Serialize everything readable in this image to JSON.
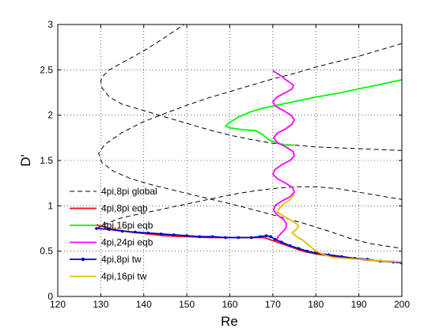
{
  "chart_data": {
    "type": "line",
    "xlabel": "Re",
    "ylabel": "D'",
    "xlim": [
      120,
      200
    ],
    "ylim": [
      0,
      3
    ],
    "xticks": [
      120,
      130,
      140,
      150,
      160,
      170,
      180,
      190,
      200
    ],
    "yticks": [
      0,
      0.5,
      1,
      1.5,
      2,
      2.5,
      3
    ],
    "grid": true,
    "legend_position": "lower-left",
    "series": [
      {
        "name": "4pi,8pi global",
        "color": "#000000",
        "style": "dashed",
        "marker": "none",
        "segments": [
          [
            [
              150,
              3.02
            ],
            [
              145,
              2.86
            ],
            [
              140,
              2.71
            ],
            [
              135,
              2.58
            ],
            [
              132,
              2.5
            ],
            [
              130.5,
              2.43
            ],
            [
              130,
              2.38
            ],
            [
              130.3,
              2.3
            ],
            [
              132,
              2.2
            ],
            [
              135,
              2.12
            ],
            [
              140,
              2.05
            ],
            [
              145,
              1.98
            ],
            [
              150,
              1.91
            ],
            [
              155,
              1.84
            ],
            [
              160,
              1.78
            ],
            [
              165,
              1.73
            ],
            [
              170,
              1.69
            ],
            [
              175,
              1.67
            ],
            [
              180,
              1.65
            ],
            [
              185,
              1.64
            ],
            [
              190,
              1.63
            ],
            [
              195,
              1.62
            ],
            [
              200,
              1.61
            ]
          ],
          [
            [
              200,
              2.79
            ],
            [
              195,
              2.72
            ],
            [
              190,
              2.65
            ],
            [
              185,
              2.59
            ],
            [
              180,
              2.53
            ],
            [
              175,
              2.46
            ],
            [
              170,
              2.4
            ],
            [
              165,
              2.33
            ],
            [
              160,
              2.26
            ],
            [
              155,
              2.19
            ],
            [
              150,
              2.11
            ],
            [
              145,
              2.02
            ],
            [
              140,
              1.93
            ],
            [
              135,
              1.81
            ],
            [
              131,
              1.68
            ],
            [
              129.5,
              1.58
            ],
            [
              130.2,
              1.48
            ],
            [
              133,
              1.38
            ],
            [
              137,
              1.3
            ],
            [
              142,
              1.23
            ],
            [
              148,
              1.16
            ],
            [
              155,
              1.08
            ],
            [
              162,
              1.0
            ],
            [
              170,
              0.9
            ],
            [
              177,
              0.81
            ],
            [
              183,
              0.72
            ],
            [
              188,
              0.64
            ],
            [
              193,
              0.58
            ],
            [
              200,
              0.53
            ]
          ],
          [
            [
              129,
              0.75
            ],
            [
              132,
              0.82
            ],
            [
              135,
              0.87
            ],
            [
              140,
              0.92
            ],
            [
              145,
              0.97
            ],
            [
              150,
              1.02
            ],
            [
              155,
              1.07
            ],
            [
              160,
              1.12
            ],
            [
              165,
              1.16
            ],
            [
              170,
              1.19
            ],
            [
              175,
              1.21
            ],
            [
              180,
              1.21
            ],
            [
              185,
              1.19
            ],
            [
              190,
              1.15
            ],
            [
              195,
              1.11
            ],
            [
              200,
              1.07
            ]
          ]
        ]
      },
      {
        "name": "4pi,8pi eqb",
        "color": "#ff0000",
        "style": "solid",
        "marker": "none",
        "segments": [
          [
            [
              129,
              0.79
            ],
            [
              133,
              0.74
            ],
            [
              137,
              0.71
            ],
            [
              141,
              0.69
            ],
            [
              145,
              0.67
            ],
            [
              150,
              0.66
            ],
            [
              155,
              0.65
            ],
            [
              160,
              0.65
            ],
            [
              165,
              0.65
            ],
            [
              168,
              0.65
            ],
            [
              171,
              0.6
            ],
            [
              174,
              0.55
            ],
            [
              177,
              0.5
            ],
            [
              180,
              0.47
            ],
            [
              184,
              0.44
            ],
            [
              188,
              0.42
            ],
            [
              192,
              0.4
            ],
            [
              196,
              0.39
            ],
            [
              200,
              0.38
            ]
          ]
        ]
      },
      {
        "name": "4pi,16pi eqb",
        "color": "#00ff00",
        "style": "solid",
        "marker": "none",
        "segments": [
          [
            [
              200,
              2.39
            ],
            [
              195,
              2.34
            ],
            [
              190,
              2.29
            ],
            [
              185,
              2.24
            ],
            [
              180,
              2.2
            ],
            [
              176,
              2.16
            ],
            [
              172,
              2.12
            ],
            [
              168,
              2.08
            ],
            [
              165,
              2.04
            ],
            [
              162,
              1.98
            ],
            [
              160,
              1.92
            ],
            [
              159,
              1.88
            ],
            [
              160,
              1.86
            ],
            [
              163,
              1.84
            ],
            [
              166,
              1.83
            ],
            [
              167.5,
              1.79
            ],
            [
              169,
              1.73
            ],
            [
              171,
              1.69
            ],
            [
              173,
              1.67
            ],
            [
              175,
              1.67
            ]
          ]
        ]
      },
      {
        "name": "4pi,24pi eqb",
        "color": "#ff00ff",
        "style": "solid",
        "marker": "none",
        "segments": [
          [
            [
              170,
              2.49
            ],
            [
              171,
              2.46
            ],
            [
              172,
              2.43
            ],
            [
              173,
              2.39
            ],
            [
              174,
              2.36
            ],
            [
              174.8,
              2.33
            ],
            [
              174.5,
              2.29
            ],
            [
              173,
              2.25
            ],
            [
              171,
              2.2
            ],
            [
              170,
              2.15
            ],
            [
              170.6,
              2.1
            ],
            [
              172.5,
              2.05
            ],
            [
              174.2,
              2.0
            ],
            [
              175,
              1.95
            ],
            [
              174.5,
              1.9
            ],
            [
              173,
              1.85
            ],
            [
              171,
              1.8
            ],
            [
              170.2,
              1.75
            ],
            [
              171,
              1.7
            ],
            [
              173,
              1.65
            ],
            [
              174.7,
              1.6
            ],
            [
              175,
              1.55
            ],
            [
              174,
              1.5
            ],
            [
              172,
              1.45
            ],
            [
              170.5,
              1.4
            ],
            [
              170,
              1.35
            ],
            [
              171,
              1.3
            ],
            [
              173,
              1.25
            ],
            [
              174.6,
              1.2
            ],
            [
              175,
              1.15
            ],
            [
              174,
              1.1
            ],
            [
              172,
              1.05
            ],
            [
              170.5,
              1.0
            ],
            [
              170.2,
              0.95
            ],
            [
              171,
              0.9
            ],
            [
              172.5,
              0.85
            ],
            [
              173.2,
              0.8
            ],
            [
              173,
              0.75
            ],
            [
              172,
              0.7
            ],
            [
              171.2,
              0.66
            ],
            [
              171,
              0.63
            ]
          ]
        ]
      },
      {
        "name": "4pi,8pi tw",
        "color": "#0000cc",
        "style": "solid",
        "marker": "dot",
        "segments": [
          [
            [
              129,
              0.75
            ],
            [
              132,
              0.74
            ],
            [
              135,
              0.72
            ],
            [
              138,
              0.71
            ],
            [
              141,
              0.7
            ],
            [
              144,
              0.69
            ],
            [
              147,
              0.68
            ],
            [
              150,
              0.67
            ],
            [
              153,
              0.66
            ],
            [
              156,
              0.66
            ],
            [
              159,
              0.65
            ],
            [
              162,
              0.65
            ],
            [
              165,
              0.65
            ],
            [
              167,
              0.66
            ],
            [
              168.5,
              0.67
            ],
            [
              169.5,
              0.66
            ],
            [
              170.5,
              0.63
            ],
            [
              172,
              0.6
            ],
            [
              174,
              0.56
            ],
            [
              176,
              0.53
            ],
            [
              178,
              0.5
            ],
            [
              180,
              0.48
            ],
            [
              183,
              0.46
            ],
            [
              186,
              0.44
            ],
            [
              189,
              0.42
            ],
            [
              192,
              0.41
            ],
            [
              195,
              0.39
            ],
            [
              198,
              0.38
            ],
            [
              200,
              0.37
            ]
          ]
        ]
      },
      {
        "name": "4pi,16pi tw",
        "color": "#e0c000",
        "style": "solid",
        "marker": "none",
        "segments": [
          [
            [
              175,
              1.13
            ],
            [
              174,
              1.07
            ],
            [
              172.5,
              1.02
            ],
            [
              171.5,
              0.97
            ],
            [
              171,
              0.93
            ],
            [
              172,
              0.9
            ],
            [
              173.5,
              0.86
            ],
            [
              175,
              0.82
            ],
            [
              176,
              0.78
            ],
            [
              175.5,
              0.74
            ],
            [
              174.5,
              0.7
            ],
            [
              175.5,
              0.66
            ],
            [
              177,
              0.62
            ],
            [
              178,
              0.58
            ],
            [
              179,
              0.54
            ],
            [
              180,
              0.5
            ],
            [
              182,
              0.46
            ],
            [
              184,
              0.43
            ],
            [
              187,
              0.42
            ],
            [
              190,
              0.41
            ],
            [
              193,
              0.4
            ],
            [
              196,
              0.39
            ],
            [
              200,
              0.38
            ]
          ]
        ]
      }
    ]
  }
}
